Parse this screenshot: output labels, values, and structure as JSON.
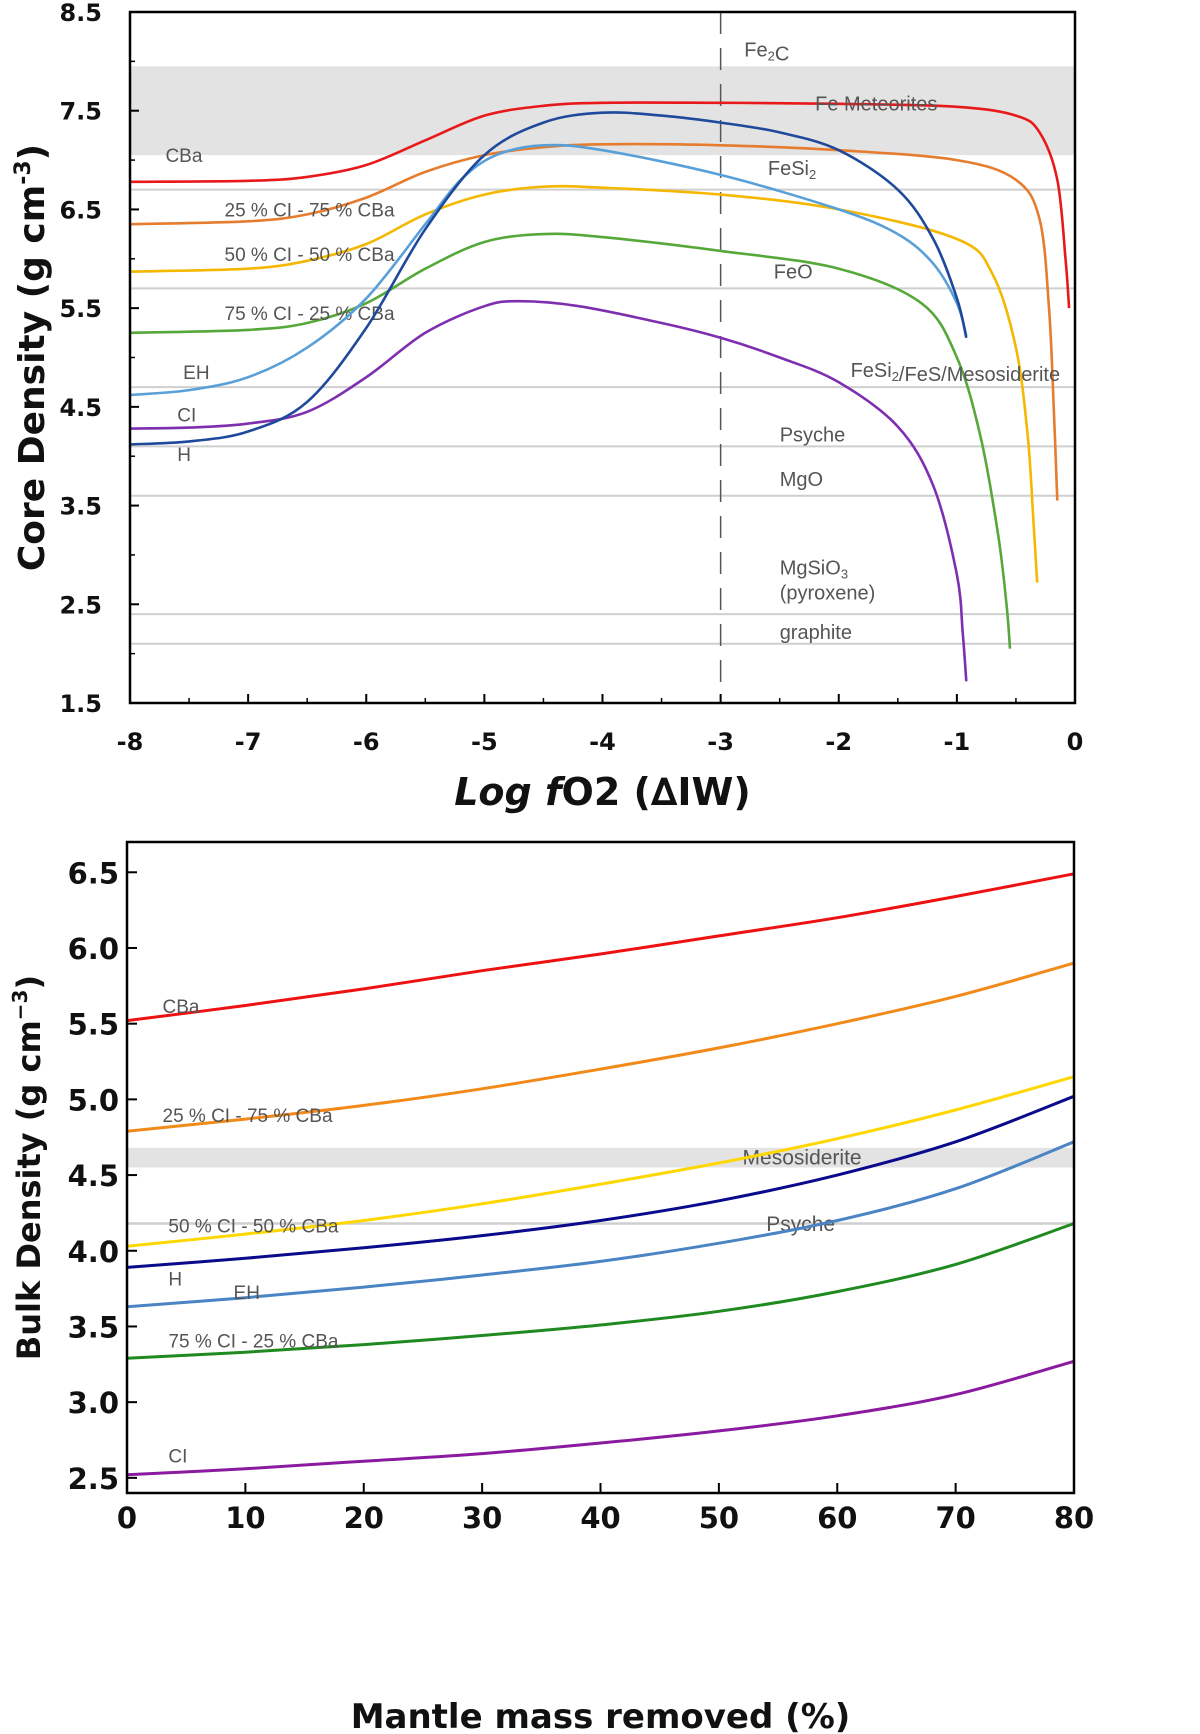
{
  "chart_data": [
    {
      "type": "line",
      "title": "",
      "xlabel_prefix": "Log ",
      "xlabel_italic": "f",
      "xlabel_suffix": "O2 (∆IW)",
      "ylabel": "Core Density (g cm",
      "ylabel_sup": "-3",
      "ylabel_close": ")",
      "xlim": [
        -8,
        0
      ],
      "ylim": [
        1.5,
        8.5
      ],
      "xticks": [
        "-8",
        "-7",
        "-6",
        "-5",
        "-4",
        "-3",
        "-2",
        "-1",
        "0"
      ],
      "yticks": [
        "1.5",
        "2.5",
        "3.5",
        "4.5",
        "5.5",
        "6.5",
        "7.5",
        "8.5"
      ],
      "band": {
        "label": "Fe Meteorites",
        "y0": 7.05,
        "y1": 7.95
      },
      "vline": {
        "x": -3,
        "style": "dashed"
      },
      "reference_lines": [
        {
          "y": 6.7,
          "label": "FeSi2"
        },
        {
          "y": 5.7,
          "label": "FeO"
        },
        {
          "y": 4.7,
          "label": "FeSi2/FeS/Mesosiderite"
        },
        {
          "y": 4.1,
          "label": "Psyche"
        },
        {
          "y": 3.6,
          "label": "MgO"
        },
        {
          "y": 2.4,
          "label": "MgSiO3 (pyroxene)"
        },
        {
          "y": 2.1,
          "label": "graphite"
        }
      ],
      "annotations": [
        {
          "text": "Fe2C",
          "x": -2.8,
          "y": 8.05
        },
        {
          "text": "Fe Meteorites",
          "x": -2.2,
          "y": 7.5
        },
        {
          "text": "FeSi2",
          "x": -2.6,
          "y": 6.85
        },
        {
          "text": "FeO",
          "x": -2.55,
          "y": 5.8
        },
        {
          "text": "FeSi2/FeS/Mesosiderite",
          "x": -1.9,
          "y": 4.8
        },
        {
          "text": "Psyche",
          "x": -2.5,
          "y": 4.15
        },
        {
          "text": "MgO",
          "x": -2.5,
          "y": 3.7
        },
        {
          "text": "MgSiO3",
          "x": -2.5,
          "y": 2.8
        },
        {
          "text": "(pyroxene)",
          "x": -2.5,
          "y": 2.55
        },
        {
          "text": "graphite",
          "x": -2.5,
          "y": 2.15
        }
      ],
      "series": [
        {
          "name": "CBa",
          "color": "#e8191b",
          "label_x": -7.7,
          "label_y": 6.98,
          "x": [
            -8,
            -7,
            -6.5,
            -6,
            -5.5,
            -5,
            -4.5,
            -4,
            -3,
            -2,
            -1,
            -0.5,
            -0.3,
            -0.15,
            -0.08,
            -0.05
          ],
          "values": [
            6.78,
            6.79,
            6.83,
            6.95,
            7.2,
            7.45,
            7.55,
            7.58,
            7.58,
            7.57,
            7.54,
            7.45,
            7.28,
            6.8,
            6.0,
            5.5
          ]
        },
        {
          "name": "25 % CI - 75 % CBa",
          "color": "#e57c2e",
          "label_x": -7.2,
          "label_y": 6.43,
          "x": [
            -8,
            -7,
            -6.5,
            -6,
            -5.5,
            -5,
            -4.5,
            -4,
            -3,
            -2,
            -1,
            -0.5,
            -0.3,
            -0.22,
            -0.18,
            -0.15
          ],
          "values": [
            6.35,
            6.38,
            6.45,
            6.62,
            6.88,
            7.05,
            7.13,
            7.16,
            7.15,
            7.1,
            7.0,
            6.8,
            6.4,
            5.5,
            4.5,
            3.55
          ]
        },
        {
          "name": "50 % CI - 50 % CBa",
          "color": "#f5b800",
          "label_x": -7.2,
          "label_y": 5.98,
          "x": [
            -8,
            -7,
            -6.5,
            -6,
            -5.5,
            -5,
            -4.5,
            -4,
            -3,
            -2,
            -1,
            -0.7,
            -0.5,
            -0.4,
            -0.35,
            -0.32
          ],
          "values": [
            5.87,
            5.9,
            5.98,
            6.15,
            6.45,
            6.65,
            6.73,
            6.72,
            6.65,
            6.5,
            6.2,
            5.85,
            5.1,
            4.2,
            3.3,
            2.72
          ]
        },
        {
          "name": "75 % CI - 25 % CBa",
          "color": "#57a83b",
          "label_x": -7.2,
          "label_y": 5.38,
          "x": [
            -8,
            -7,
            -6.5,
            -6,
            -5.5,
            -5,
            -4.5,
            -4,
            -3,
            -2,
            -1.3,
            -1,
            -0.8,
            -0.65,
            -0.58,
            -0.55
          ],
          "values": [
            5.25,
            5.28,
            5.35,
            5.55,
            5.9,
            6.17,
            6.25,
            6.22,
            6.08,
            5.9,
            5.55,
            5.0,
            4.2,
            3.2,
            2.5,
            2.05
          ]
        },
        {
          "name": "EH",
          "color": "#5aa0d8",
          "label_x": -7.55,
          "label_y": 4.78,
          "x": [
            -8,
            -7.5,
            -7,
            -6.5,
            -6,
            -5.5,
            -5.2,
            -4.9,
            -4.5,
            -4,
            -3,
            -2,
            -1.5,
            -1.2,
            -1.0,
            -0.92
          ],
          "values": [
            4.62,
            4.67,
            4.8,
            5.1,
            5.6,
            6.35,
            6.8,
            7.05,
            7.15,
            7.1,
            6.85,
            6.5,
            6.25,
            5.95,
            5.55,
            5.22
          ]
        },
        {
          "name": "CI",
          "color": "#7e2fb0",
          "label_x": -7.6,
          "label_y": 4.35,
          "x": [
            -8,
            -7.5,
            -7,
            -6.5,
            -6,
            -5.5,
            -5,
            -4.7,
            -4.2,
            -3.5,
            -3,
            -2.5,
            -2,
            -1.5,
            -1.2,
            -1.0,
            -0.95,
            -0.92
          ],
          "values": [
            4.28,
            4.29,
            4.33,
            4.45,
            4.8,
            5.25,
            5.52,
            5.57,
            5.52,
            5.35,
            5.2,
            5.0,
            4.75,
            4.3,
            3.7,
            2.8,
            2.2,
            1.72
          ]
        },
        {
          "name": "H",
          "color": "#1f4a9c",
          "label_x": -7.6,
          "label_y": 3.95,
          "x": [
            -8,
            -7.5,
            -7,
            -6.5,
            -6,
            -5.5,
            -5,
            -4.5,
            -4,
            -3.5,
            -3,
            -2.5,
            -2,
            -1.5,
            -1.2,
            -1.0,
            -0.92
          ],
          "values": [
            4.12,
            4.15,
            4.25,
            4.55,
            5.3,
            6.3,
            7.05,
            7.38,
            7.48,
            7.45,
            7.38,
            7.28,
            7.1,
            6.7,
            6.2,
            5.6,
            5.2
          ]
        }
      ]
    },
    {
      "type": "line",
      "title": "",
      "xlabel": "Mantle mass removed (%)",
      "ylabel": "Bulk Density (g cm",
      "ylabel_sup": "−3",
      "ylabel_close": ")",
      "xlim": [
        0,
        80
      ],
      "ylim": [
        2.4,
        6.7
      ],
      "xticks": [
        "0",
        "10",
        "20",
        "30",
        "40",
        "50",
        "60",
        "70",
        "80"
      ],
      "yticks": [
        "2.5",
        "3.0",
        "3.5",
        "4.0",
        "4.5",
        "5.0",
        "5.5",
        "6.0",
        "6.5"
      ],
      "band": {
        "label": "Mesosiderite",
        "y0": 4.55,
        "y1": 4.68
      },
      "reference_lines": [
        {
          "y": 4.18,
          "label": "Psyche"
        }
      ],
      "annotations": [
        {
          "text": "Mesosiderite",
          "x": 52,
          "y": 4.57
        },
        {
          "text": "Psyche",
          "x": 54,
          "y": 4.13
        }
      ],
      "series": [
        {
          "name": "CBa",
          "color": "#ee1111",
          "label_x": 3,
          "label_y": 5.57,
          "x": [
            0,
            10,
            20,
            30,
            40,
            50,
            60,
            70,
            80
          ],
          "values": [
            5.52,
            5.62,
            5.73,
            5.85,
            5.96,
            6.08,
            6.2,
            6.34,
            6.49
          ]
        },
        {
          "name": "25 % CI - 75 % CBa",
          "color": "#f28a1a",
          "label_x": 3,
          "label_y": 4.85,
          "x": [
            0,
            10,
            20,
            30,
            40,
            50,
            60,
            70,
            80
          ],
          "values": [
            4.79,
            4.87,
            4.96,
            5.07,
            5.2,
            5.34,
            5.5,
            5.68,
            5.9
          ]
        },
        {
          "name": "50 % CI - 50 % CBa",
          "color": "#ffd700",
          "label_x": 3.5,
          "label_y": 4.12,
          "x": [
            0,
            10,
            20,
            30,
            40,
            50,
            60,
            70,
            80
          ],
          "values": [
            4.03,
            4.11,
            4.2,
            4.31,
            4.44,
            4.58,
            4.74,
            4.93,
            5.15
          ]
        },
        {
          "name": "H",
          "color": "#0a0a8c",
          "label_x": 3.5,
          "label_y": 3.77,
          "x": [
            0,
            10,
            20,
            30,
            40,
            50,
            60,
            70,
            80
          ],
          "values": [
            3.89,
            3.95,
            4.02,
            4.1,
            4.2,
            4.33,
            4.5,
            4.72,
            5.02
          ]
        },
        {
          "name": "EH",
          "color": "#4a84c4",
          "label_x": 9,
          "label_y": 3.68,
          "x": [
            0,
            10,
            20,
            30,
            40,
            50,
            60,
            70,
            80
          ],
          "values": [
            3.63,
            3.69,
            3.76,
            3.84,
            3.93,
            4.05,
            4.2,
            4.41,
            4.72
          ]
        },
        {
          "name": "75 % CI - 25 % CBa",
          "color": "#1f8a1f",
          "label_x": 3.5,
          "label_y": 3.36,
          "x": [
            0,
            10,
            20,
            30,
            40,
            50,
            60,
            70,
            80
          ],
          "values": [
            3.29,
            3.33,
            3.38,
            3.44,
            3.51,
            3.6,
            3.73,
            3.91,
            4.18
          ]
        },
        {
          "name": "CI",
          "color": "#8a1aa0",
          "label_x": 3.5,
          "label_y": 2.6,
          "x": [
            0,
            10,
            20,
            30,
            40,
            50,
            60,
            70,
            80
          ],
          "values": [
            2.52,
            2.56,
            2.61,
            2.66,
            2.73,
            2.81,
            2.91,
            3.05,
            3.27
          ]
        }
      ]
    }
  ]
}
